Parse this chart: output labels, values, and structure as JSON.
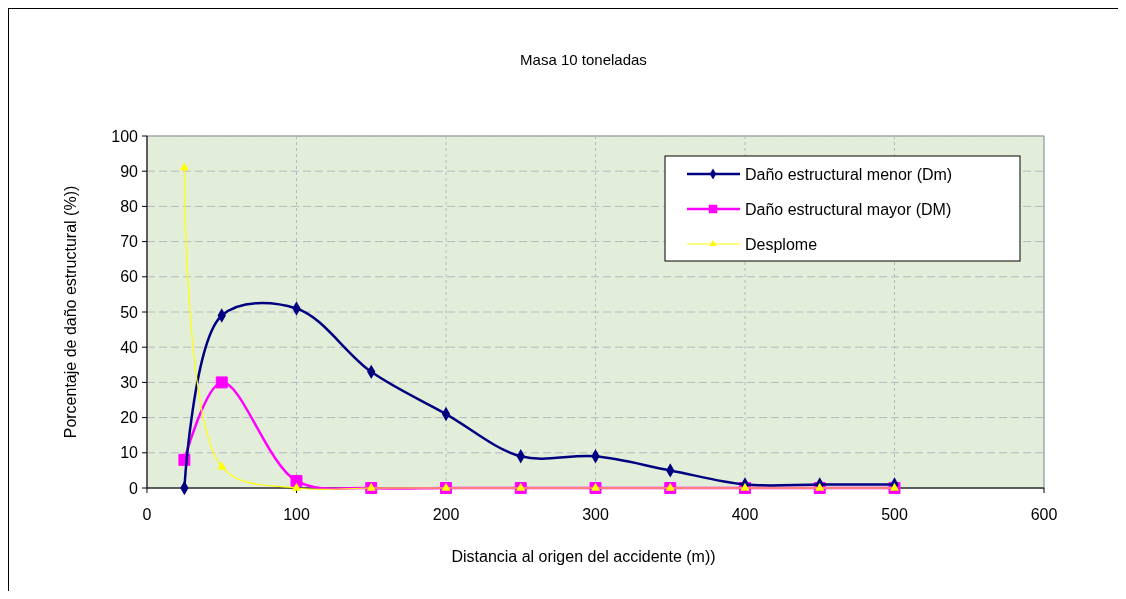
{
  "chart_data": {
    "type": "line",
    "title": "Masa 10 toneladas",
    "xlabel": "Distancia al origen del accidente (m))",
    "ylabel": "Porcentaje de daño estructural  (%))",
    "x": [
      25,
      50,
      100,
      150,
      200,
      250,
      300,
      350,
      400,
      450,
      500
    ],
    "series": [
      {
        "name": "Daño estructural menor (Dm)",
        "color": "#000080",
        "marker": "diamond",
        "values": [
          0,
          49,
          51,
          33,
          21,
          9,
          9,
          5,
          1,
          1,
          1
        ]
      },
      {
        "name": "Daño estructural mayor (DM)",
        "color": "#ff00ff",
        "marker": "square",
        "values": [
          8,
          30,
          2,
          0,
          0,
          0,
          0,
          0,
          0,
          0,
          0
        ]
      },
      {
        "name": "Desplome",
        "color": "#ffff00",
        "marker": "triangle",
        "values": [
          91,
          6,
          0,
          0,
          0,
          0,
          0,
          0,
          0,
          0,
          0
        ]
      }
    ],
    "xlim": [
      0,
      600
    ],
    "xticks": [
      0,
      100,
      200,
      300,
      400,
      500,
      600
    ],
    "ylim": [
      0,
      100
    ],
    "yticks": [
      0,
      10,
      20,
      30,
      40,
      50,
      60,
      70,
      80,
      90,
      100
    ],
    "grid": true,
    "legend": "top right",
    "line_style": "solid"
  }
}
